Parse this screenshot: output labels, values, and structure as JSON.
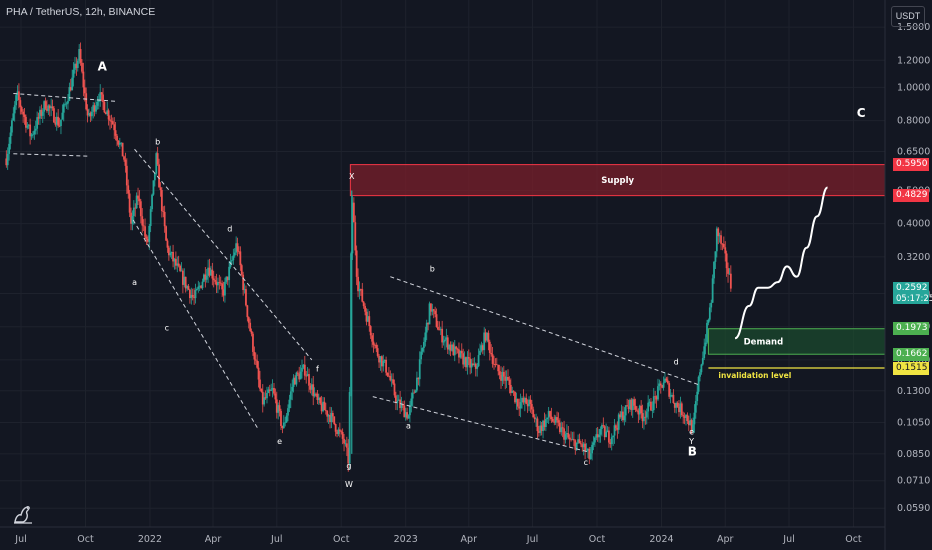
{
  "header": {
    "title": "PHA / TetherUS, 12h, BINANCE",
    "unit_button": "USDT"
  },
  "icons": {
    "logo": "tradingview-logo-icon"
  },
  "colors": {
    "background": "#131722",
    "up": "#26a69a",
    "down": "#ef5350",
    "supply_zone": "#7a1f2b",
    "demand_zone": "#1b4d2e",
    "invalidation": "#f0e442",
    "current_price": "#26a69a"
  },
  "chart_data": {
    "type": "candlestick",
    "title": "PHA / TetherUS, 12h, BINANCE",
    "y_scale": "log",
    "ylim": [
      0.052,
      1.8
    ],
    "xlim": [
      "2021-06-01",
      "2024-11-15"
    ],
    "x_ticks": [
      {
        "label": "Jul",
        "date": "2021-07-01"
      },
      {
        "label": "Oct",
        "date": "2021-10-01"
      },
      {
        "label": "2022",
        "date": "2022-01-01"
      },
      {
        "label": "Apr",
        "date": "2022-04-01"
      },
      {
        "label": "Jul",
        "date": "2022-07-01"
      },
      {
        "label": "Oct",
        "date": "2022-10-01"
      },
      {
        "label": "2023",
        "date": "2023-01-01"
      },
      {
        "label": "Apr",
        "date": "2023-04-01"
      },
      {
        "label": "Jul",
        "date": "2023-07-01"
      },
      {
        "label": "Oct",
        "date": "2023-10-01"
      },
      {
        "label": "2024",
        "date": "2024-01-01"
      },
      {
        "label": "Apr",
        "date": "2024-04-01"
      },
      {
        "label": "Jul",
        "date": "2024-07-01"
      },
      {
        "label": "Oct",
        "date": "2024-10-01"
      }
    ],
    "y_ticks": [
      1.5,
      1.2,
      1.0,
      0.8,
      0.65,
      0.5,
      0.4,
      0.32,
      0.25,
      0.2,
      0.16,
      0.13,
      0.105,
      0.085,
      0.071,
      0.059
    ],
    "y_tick_labels": [
      "1.5000",
      "1.2000",
      "1.0000",
      "0.8000",
      "0.6500",
      "0.5000",
      "0.4000",
      "0.3200",
      "0.2500",
      "0.2000",
      "0.1600",
      "0.1300",
      "0.1050",
      "0.0850",
      "0.0710",
      "0.0590"
    ],
    "price_path": [
      [
        "2021-06-10",
        0.62
      ],
      [
        "2021-06-25",
        0.95
      ],
      [
        "2021-07-15",
        0.72
      ],
      [
        "2021-08-05",
        0.9
      ],
      [
        "2021-08-25",
        0.78
      ],
      [
        "2021-09-12",
        1.05
      ],
      [
        "2021-09-22",
        1.25
      ],
      [
        "2021-10-05",
        0.8
      ],
      [
        "2021-10-20",
        0.95
      ],
      [
        "2021-11-10",
        0.78
      ],
      [
        "2021-11-25",
        0.62
      ],
      [
        "2021-12-05",
        0.4
      ],
      [
        "2021-12-15",
        0.48
      ],
      [
        "2021-12-28",
        0.34
      ],
      [
        "2022-01-10",
        0.62
      ],
      [
        "2022-01-25",
        0.34
      ],
      [
        "2022-02-15",
        0.28
      ],
      [
        "2022-03-05",
        0.24
      ],
      [
        "2022-03-25",
        0.3
      ],
      [
        "2022-04-15",
        0.25
      ],
      [
        "2022-05-05",
        0.35
      ],
      [
        "2022-05-20",
        0.22
      ],
      [
        "2022-06-10",
        0.12
      ],
      [
        "2022-06-25",
        0.13
      ],
      [
        "2022-07-10",
        0.1
      ],
      [
        "2022-07-25",
        0.14
      ],
      [
        "2022-08-10",
        0.15
      ],
      [
        "2022-08-28",
        0.12
      ],
      [
        "2022-09-15",
        0.11
      ],
      [
        "2022-10-05",
        0.092
      ],
      [
        "2022-10-12",
        0.08
      ],
      [
        "2022-10-16",
        0.5
      ],
      [
        "2022-10-24",
        0.27
      ],
      [
        "2022-11-05",
        0.22
      ],
      [
        "2022-11-20",
        0.17
      ],
      [
        "2022-12-05",
        0.15
      ],
      [
        "2022-12-20",
        0.12
      ],
      [
        "2023-01-05",
        0.11
      ],
      [
        "2023-01-20",
        0.15
      ],
      [
        "2023-02-05",
        0.23
      ],
      [
        "2023-02-20",
        0.19
      ],
      [
        "2023-03-10",
        0.17
      ],
      [
        "2023-03-25",
        0.16
      ],
      [
        "2023-04-10",
        0.15
      ],
      [
        "2023-04-25",
        0.19
      ],
      [
        "2023-05-10",
        0.15
      ],
      [
        "2023-05-25",
        0.14
      ],
      [
        "2023-06-10",
        0.12
      ],
      [
        "2023-06-25",
        0.12
      ],
      [
        "2023-07-10",
        0.1
      ],
      [
        "2023-07-25",
        0.11
      ],
      [
        "2023-08-10",
        0.1
      ],
      [
        "2023-08-25",
        0.092
      ],
      [
        "2023-09-10",
        0.09
      ],
      [
        "2023-09-20",
        0.083
      ],
      [
        "2023-10-05",
        0.1
      ],
      [
        "2023-10-20",
        0.095
      ],
      [
        "2023-11-05",
        0.11
      ],
      [
        "2023-11-20",
        0.12
      ],
      [
        "2023-12-05",
        0.11
      ],
      [
        "2023-12-20",
        0.12
      ],
      [
        "2024-01-05",
        0.14
      ],
      [
        "2024-01-20",
        0.12
      ],
      [
        "2024-02-05",
        0.11
      ],
      [
        "2024-02-15",
        0.1
      ],
      [
        "2024-02-25",
        0.15
      ],
      [
        "2024-03-05",
        0.19
      ],
      [
        "2024-03-12",
        0.24
      ],
      [
        "2024-03-20",
        0.38
      ],
      [
        "2024-03-28",
        0.34
      ],
      [
        "2024-04-05",
        0.29
      ],
      [
        "2024-04-10",
        0.2592
      ]
    ],
    "zones": [
      {
        "name": "Supply",
        "from": 0.4829,
        "to": 0.595,
        "start": "2022-10-14"
      },
      {
        "name": "Demand",
        "from": 0.1662,
        "to": 0.1973,
        "start": "2024-03-08"
      }
    ],
    "levels": [
      {
        "name": "invalidation level",
        "value": 0.1515,
        "start": "2024-03-08"
      }
    ],
    "price_tags": [
      {
        "value": 0.595,
        "label": "0.5950",
        "color": "#f23645"
      },
      {
        "value": 0.4829,
        "label": "0.4829",
        "color": "#f23645"
      },
      {
        "value": 0.2592,
        "label": "0.2592",
        "sublabel": "05:17:25",
        "color": "#26a69a"
      },
      {
        "value": 0.1973,
        "label": "0.1973",
        "color": "#4caf50"
      },
      {
        "value": 0.1662,
        "label": "0.1662",
        "color": "#4caf50"
      },
      {
        "value": 0.1515,
        "label": "0.1515",
        "color": "#f0e442"
      }
    ],
    "trendlines": [
      [
        [
          "2021-06-20",
          0.96
        ],
        [
          "2021-11-15",
          0.91
        ]
      ],
      [
        [
          "2021-06-20",
          0.64
        ],
        [
          "2021-10-05",
          0.63
        ]
      ],
      [
        [
          "2021-12-10",
          0.66
        ],
        [
          "2022-08-20",
          0.16
        ]
      ],
      [
        [
          "2021-12-08",
          0.41
        ],
        [
          "2022-06-05",
          0.1
        ]
      ],
      [
        [
          "2022-12-10",
          0.28
        ],
        [
          "2024-02-25",
          0.135
        ]
      ],
      [
        [
          "2022-11-15",
          0.125
        ],
        [
          "2023-09-20",
          0.086
        ]
      ]
    ],
    "projection": [
      [
        "2024-04-15",
        0.185
      ],
      [
        "2024-05-05",
        0.23
      ],
      [
        "2024-05-18",
        0.26
      ],
      [
        "2024-06-01",
        0.26
      ],
      [
        "2024-06-15",
        0.27
      ],
      [
        "2024-06-28",
        0.3
      ],
      [
        "2024-07-12",
        0.28
      ],
      [
        "2024-07-26",
        0.34
      ],
      [
        "2024-08-10",
        0.42
      ],
      [
        "2024-08-25",
        0.51
      ]
    ],
    "wave_labels": [
      {
        "text": "A",
        "date": "2021-10-25",
        "value": 1.12,
        "size": "big"
      },
      {
        "text": "b",
        "date": "2022-01-12",
        "value": 0.68
      },
      {
        "text": "a",
        "date": "2021-12-10",
        "value": 0.265
      },
      {
        "text": "c",
        "date": "2022-01-25",
        "value": 0.195
      },
      {
        "text": "d",
        "date": "2022-04-25",
        "value": 0.38
      },
      {
        "text": "e",
        "date": "2022-07-05",
        "value": 0.091
      },
      {
        "text": "f",
        "date": "2022-08-28",
        "value": 0.148
      },
      {
        "text": "g",
        "date": "2022-10-12",
        "value": 0.077
      },
      {
        "text": "W",
        "date": "2022-10-12",
        "value": 0.068
      },
      {
        "text": "X",
        "date": "2022-10-16",
        "value": 0.54
      },
      {
        "text": "b",
        "date": "2023-02-08",
        "value": 0.29
      },
      {
        "text": "a",
        "date": "2023-01-05",
        "value": 0.101
      },
      {
        "text": "c",
        "date": "2023-09-15",
        "value": 0.079
      },
      {
        "text": "d",
        "date": "2024-01-22",
        "value": 0.155
      },
      {
        "text": "e",
        "date": "2024-02-13",
        "value": 0.097
      },
      {
        "text": "Y",
        "date": "2024-02-13",
        "value": 0.091
      },
      {
        "text": "B",
        "date": "2024-02-14",
        "value": 0.084,
        "size": "big"
      },
      {
        "text": "C",
        "date": "2024-10-12",
        "value": 0.82,
        "size": "big"
      }
    ]
  }
}
